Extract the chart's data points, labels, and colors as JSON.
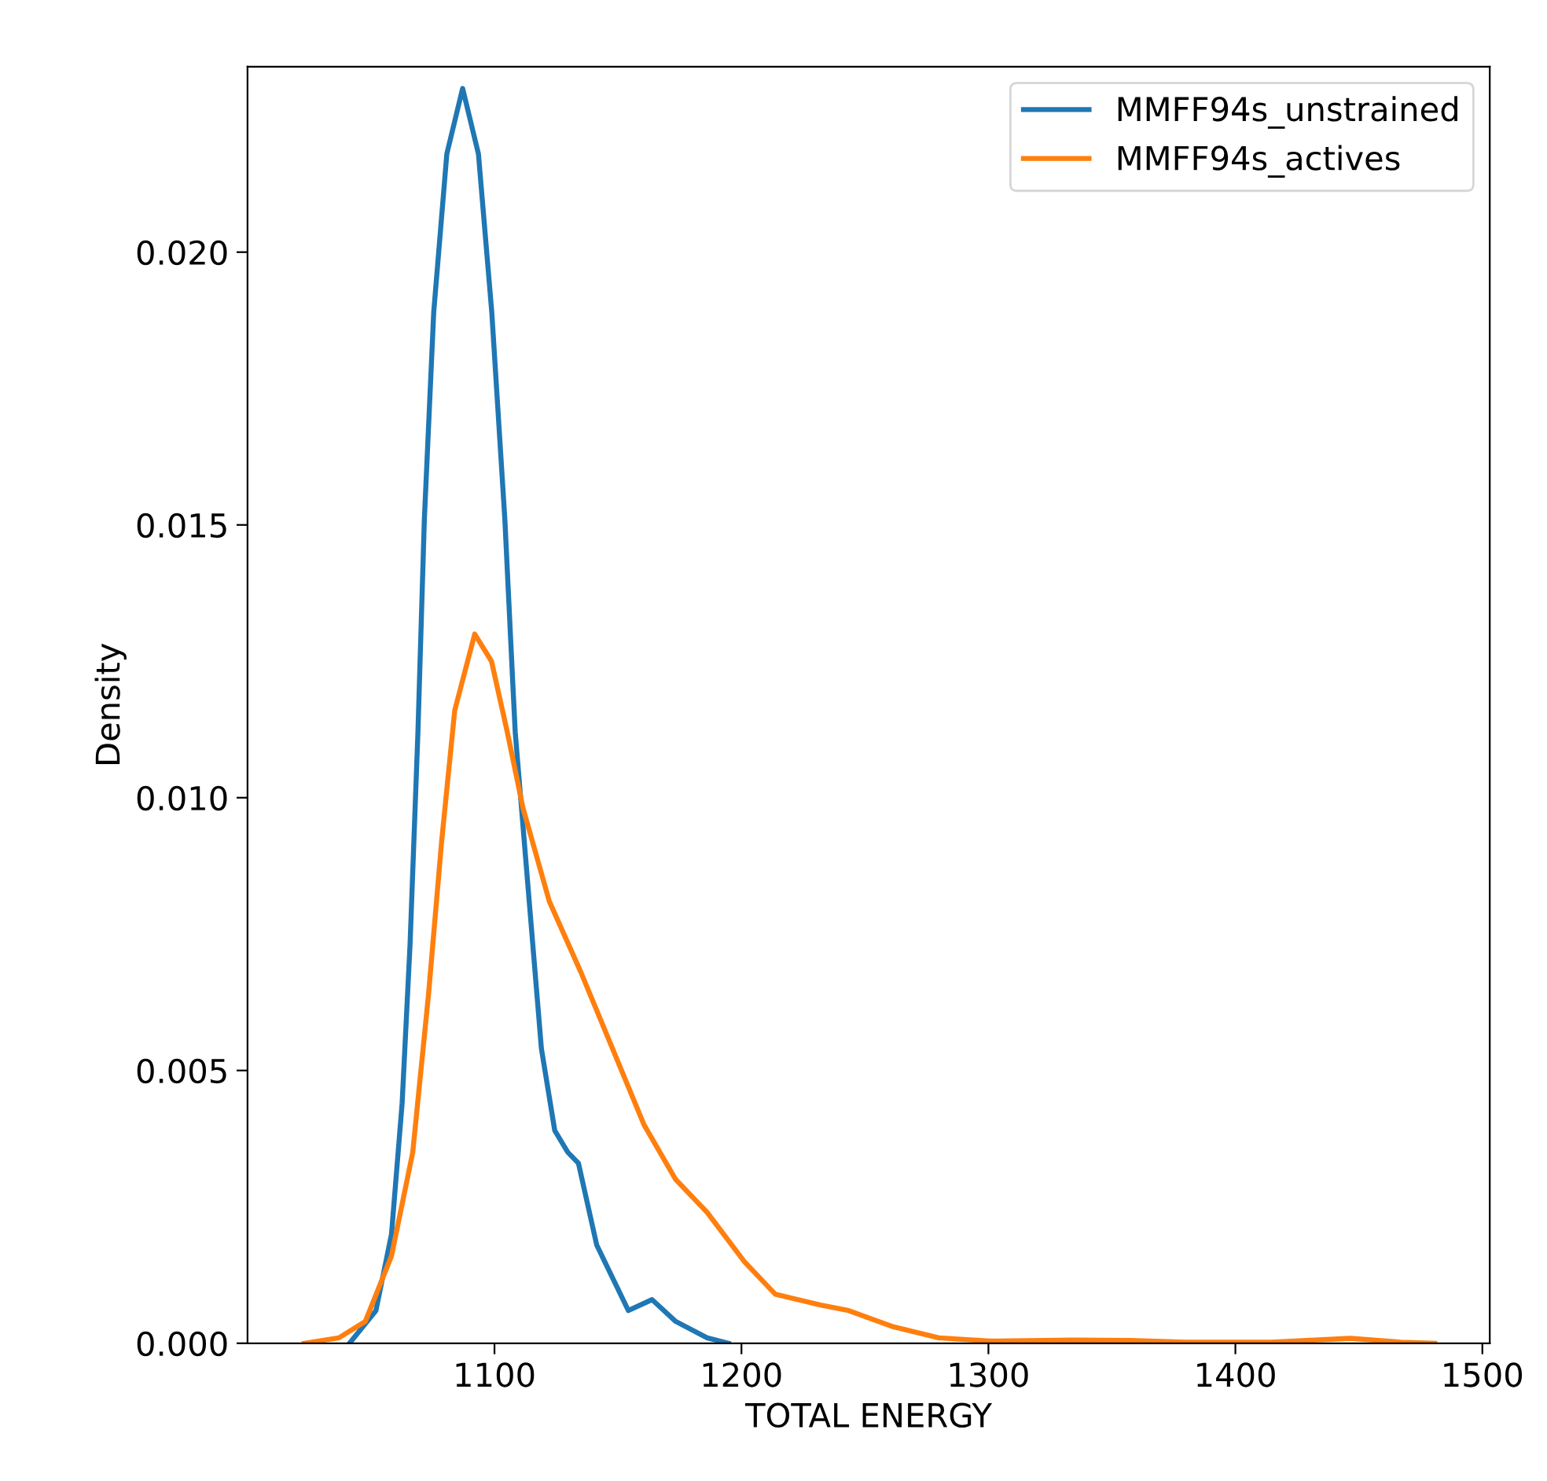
{
  "chart_data": {
    "type": "line",
    "xlabel": "TOTAL ENERGY",
    "ylabel": "Density",
    "series": [
      {
        "name": "MMFF94s_unstrained",
        "color": "#1f77b4",
        "x": [
          1041.3,
          1052,
          1058.3,
          1062.6,
          1065.8,
          1069,
          1071.6,
          1075.4,
          1080.7,
          1087.1,
          1093.5,
          1098.9,
          1104.2,
          1107.3,
          1108.4,
          1113.7,
          1119,
          1124.4,
          1129.7,
          1134,
          1141.4,
          1154.2,
          1163.8,
          1173.4,
          1186.1,
          1194.7
        ],
        "values": [
          0,
          0.0006,
          0.002,
          0.0044,
          0.0073,
          0.0112,
          0.0151,
          0.0189,
          0.0218,
          0.023,
          0.0218,
          0.0189,
          0.0151,
          0.0122,
          0.0112,
          0.0083,
          0.0054,
          0.0039,
          0.0035,
          0.0033,
          0.0018,
          0.0006,
          0.0008,
          0.0004,
          0.0001,
          0
        ]
      },
      {
        "name": "MMFF94s_actives",
        "color": "#ff7f0e",
        "x": [
          1023,
          1037,
          1047.7,
          1058.3,
          1066.9,
          1073.3,
          1078.6,
          1083.9,
          1092,
          1098.8,
          1105.2,
          1111.6,
          1122.2,
          1135,
          1147.8,
          1160.6,
          1173.4,
          1186.1,
          1201.1,
          1213.7,
          1232,
          1243.4,
          1261.6,
          1279.9,
          1300.3,
          1334.6,
          1357.4,
          1380.2,
          1414.5,
          1446.5,
          1467,
          1480.7
        ],
        "values": [
          0,
          0.0001,
          0.0004,
          0.0016,
          0.0035,
          0.0064,
          0.0092,
          0.0116,
          0.013,
          0.0125,
          0.0112,
          0.0098,
          0.0081,
          0.0068,
          0.0054,
          0.004,
          0.003,
          0.0024,
          0.0015,
          0.0009,
          0.0007,
          0.0006,
          0.0003,
          0.0001,
          4e-05,
          6e-05,
          5e-05,
          2e-05,
          2e-05,
          9e-05,
          2e-05,
          0
        ]
      }
    ],
    "xlim": [
      1000,
      1503
    ],
    "xticks": [
      1100,
      1200,
      1300,
      1400,
      1500
    ],
    "ylim": [
      0,
      0.0234
    ],
    "yticks": [
      {
        "value": 0,
        "label": "0.000"
      },
      {
        "value": 0.005,
        "label": "0.005"
      },
      {
        "value": 0.01,
        "label": "0.010"
      },
      {
        "value": 0.015,
        "label": "0.015"
      },
      {
        "value": 0.02,
        "label": "0.020"
      }
    ],
    "legend": "top right",
    "grid": false,
    "marker": "none",
    "line_style": "solid"
  }
}
